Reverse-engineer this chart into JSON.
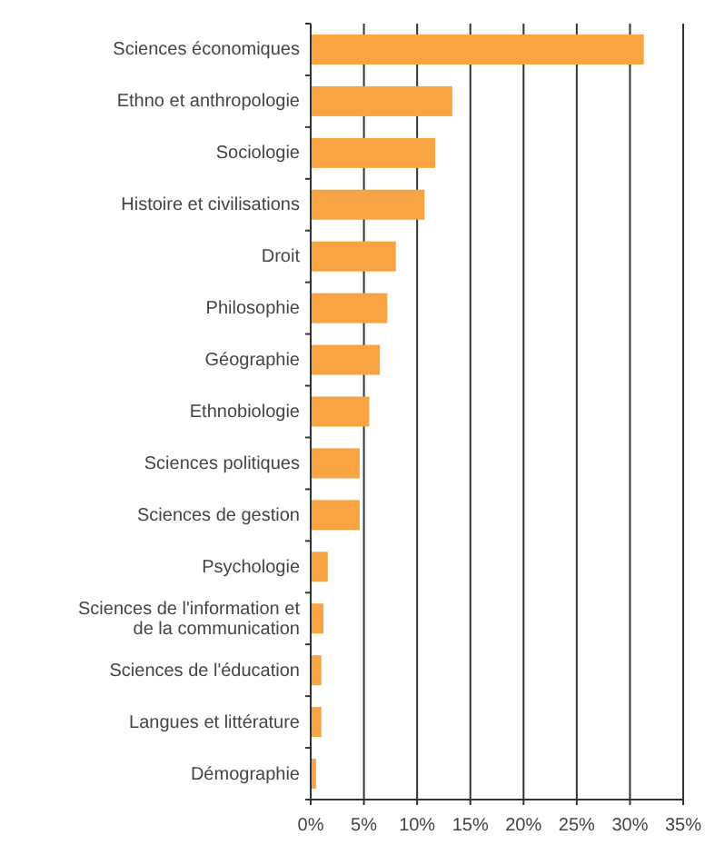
{
  "chart_data": {
    "type": "bar",
    "orientation": "horizontal",
    "categories": [
      "Sciences économiques",
      "Ethno et anthropologie",
      "Sociologie",
      "Histoire et civilisations",
      "Droit",
      "Philosophie",
      "Géographie",
      "Ethnobiologie",
      "Sciences politiques",
      "Sciences de gestion",
      "Psychologie",
      "Sciences de l'information et de la communication",
      "Sciences de l'éducation",
      "Langues et littérature",
      "Démographie"
    ],
    "values": [
      31.3,
      13.3,
      11.7,
      10.7,
      8.0,
      7.2,
      6.5,
      5.5,
      4.6,
      4.6,
      1.6,
      1.2,
      1.0,
      1.0,
      0.5
    ],
    "color": "#f9a443",
    "xlim": [
      0,
      35
    ],
    "xticks": [
      {
        "value": 0,
        "label": "0%"
      },
      {
        "value": 5,
        "label": "5%"
      },
      {
        "value": 10,
        "label": "10%"
      },
      {
        "value": 15,
        "label": "15%"
      },
      {
        "value": 20,
        "label": "20%"
      },
      {
        "value": 25,
        "label": "25%"
      },
      {
        "value": 30,
        "label": "30%"
      },
      {
        "value": 35,
        "label": "35%"
      }
    ],
    "grid": "x"
  }
}
